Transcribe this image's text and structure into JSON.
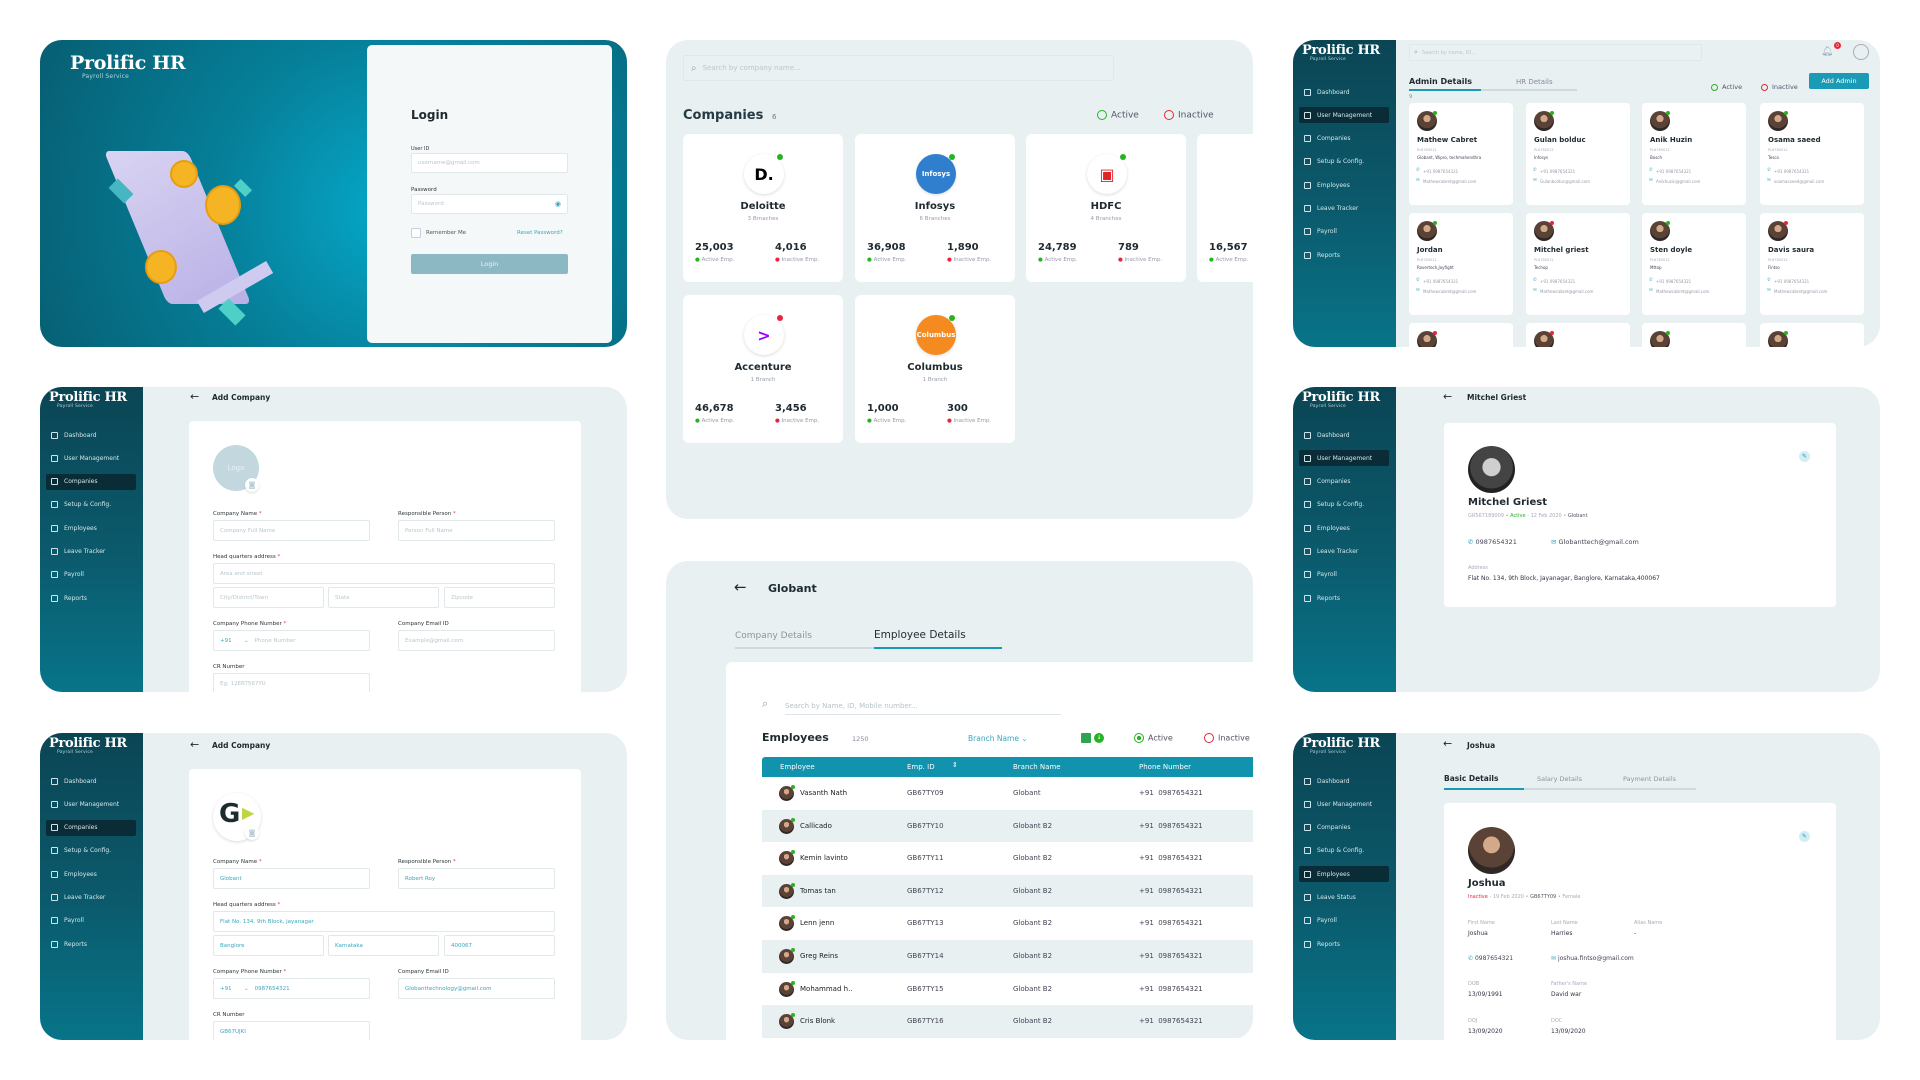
{
  "brand": {
    "name": "Prolific HR",
    "tagline": "Payroll Service"
  },
  "login": {
    "title": "Login",
    "user_id_label": "User ID",
    "user_id_placeholder": "username@gmail.com",
    "password_label": "Password",
    "password_placeholder": "Password",
    "remember_label": "Remember Me",
    "reset_link": "Reset Password?",
    "login_button": "Login"
  },
  "companies": {
    "search_placeholder": "Search by company name...",
    "title": "Companies",
    "count": "6",
    "legend": {
      "active": "Active",
      "inactive": "Inactive"
    },
    "active_label": "Active Emp.",
    "inactive_label": "Inactive Emp.",
    "cards": [
      {
        "name": "Deloitte",
        "branches": "3 Brnaches",
        "active": "25,003",
        "inactive": "4,016",
        "status": "active",
        "logo_text": "D.",
        "logo_bg": "#ffffff",
        "logo_fg": "#000000"
      },
      {
        "name": "Infosys",
        "branches": "6 Branches",
        "active": "36,908",
        "inactive": "1,890",
        "status": "active",
        "logo_text": "Infosys",
        "logo_bg": "#2f7fce",
        "logo_fg": "#ffffff"
      },
      {
        "name": "HDFC",
        "branches": "4 Branches",
        "active": "24,789",
        "inactive": "789",
        "status": "active",
        "logo_text": "▣",
        "logo_bg": "#ffffff",
        "logo_fg": "#e2232a"
      },
      {
        "name": "",
        "branches": "",
        "active": "16,567",
        "inactive": "",
        "status": "active",
        "logo_text": "",
        "logo_bg": "#ffffff",
        "logo_fg": "#000000"
      },
      {
        "name": "Accenture",
        "branches": "1 Branch",
        "active": "46,678",
        "inactive": "3,456",
        "status": "inactive",
        "logo_text": ">",
        "logo_bg": "#ffffff",
        "logo_fg": "#a100ff"
      },
      {
        "name": "Columbus",
        "branches": "1 Branch",
        "active": "1,000",
        "inactive": "300",
        "status": "active",
        "logo_text": "Columbus",
        "logo_bg": "#f58a20",
        "logo_fg": "#ffffff"
      }
    ]
  },
  "admin": {
    "sidebar": {
      "active": 1,
      "items": [
        "Dashboard",
        "User Management",
        "Companies",
        "Setup & Config.",
        "Employees",
        "Leave Tracker",
        "Payroll",
        "Reports"
      ]
    },
    "search_placeholder": "Search by name, ID...",
    "notification_count": "0",
    "tabs": [
      "Admin Details",
      "HR Details"
    ],
    "legend": {
      "active": "Active",
      "inactive": "Inactive"
    },
    "add_button": "Add Admin",
    "count": "9",
    "cards": [
      {
        "name": "Mathew Cabret",
        "id": "PL6780012",
        "company": "Globant, Wipro, techmahendhra",
        "phone": "+91 0987654321",
        "email": "Mathewcabret@gmail.com",
        "status": "active"
      },
      {
        "name": "Gulan bolduc",
        "id": "PL6780012",
        "company": "Infosys",
        "phone": "+91 0987654321",
        "email": "Gulanbolduc@gmail.com",
        "status": "active"
      },
      {
        "name": "Anik Huzin",
        "id": "PL6780012",
        "company": "Bosch",
        "phone": "+91 0987654321",
        "email": "Anikhuzin@gmail.com",
        "status": "active"
      },
      {
        "name": "Osama saeed",
        "id": "PL6780012",
        "company": "Tesco",
        "phone": "+91 0987654321",
        "email": "osamasaeed@gmail.com",
        "status": "active"
      },
      {
        "name": "Jordan",
        "id": "PL6780012",
        "company": "Rovertech,Joyfight",
        "phone": "+91 0987654321",
        "email": "Mathewcabret@gmail.com",
        "status": "active"
      },
      {
        "name": "Mitchel griest",
        "id": "PL6780012",
        "company": "Techop",
        "phone": "+91 0987654321",
        "email": "Mathewcabret@gmail.com",
        "status": "inactive"
      },
      {
        "name": "Sten doyle",
        "id": "PL6780012",
        "company": "Mttop",
        "phone": "+91 0987654321",
        "email": "Mathewcabret@gmail.com",
        "status": "active"
      },
      {
        "name": "Davis saura",
        "id": "PL6780012",
        "company": "Fintso",
        "phone": "+91 0987654321",
        "email": "Mathewcabret@gmail.com",
        "status": "inactive"
      }
    ],
    "partial_statuses": [
      "inactive",
      "inactive",
      "active",
      "active"
    ]
  },
  "add_company": {
    "sidebar": {
      "active": 2,
      "items": [
        "Dashboard",
        "User Management",
        "Companies",
        "Setup & Config.",
        "Employees",
        "Leave Tracker",
        "Payroll",
        "Reports"
      ]
    },
    "title": "Add Company",
    "logo_placeholder": "Logo",
    "labels": {
      "company_name": "Company Name",
      "responsible": "Responsible Person",
      "hq": "Head quarters address",
      "phone": "Company Phone Number",
      "email": "Company Email ID",
      "cr": "CR Number"
    },
    "placeholders": {
      "company_name": "Company Full Name",
      "responsible": "Person Full Name",
      "street": "Area and street",
      "city": "City/District/Town",
      "state": "State",
      "zip": "Zipcode",
      "country_code": "+91",
      "phone": "Phone Number",
      "email": "Example@gmail.com",
      "cr": "Eg: 12ERT567YU"
    }
  },
  "add_company_filled": {
    "sidebar": {
      "active": 2,
      "items": [
        "Dashboard",
        "User Management",
        "Companies",
        "Setup & Config.",
        "Employees",
        "Leave Tracker",
        "Payroll",
        "Reports"
      ]
    },
    "title": "Add Company",
    "logo_text": "G",
    "labels": {
      "company_name": "Company Name",
      "responsible": "Responsible Person",
      "hq": "Head quarters address",
      "phone": "Company Phone Number",
      "email": "Company Email ID",
      "cr": "CR Number"
    },
    "values": {
      "company_name": "Globant",
      "responsible": "Robert Roy",
      "street": "Flat No. 134, 9th Block, jayanagar",
      "city": "Banglore",
      "state": "Karnataka",
      "zip": "400067",
      "country_code": "+91",
      "phone": "0987654321",
      "email": "Globanttechnology@gmail.com",
      "cr": "GB67UJKI"
    }
  },
  "globant": {
    "title": "Globant",
    "tabs": [
      "Company Details",
      "Employee Details"
    ],
    "active_tab": 1,
    "search_placeholder": "Search by Name, ID, Mobile number...",
    "employees_title": "Employees",
    "employees_count": "1250",
    "branch_filter": "Branch Name",
    "legend": {
      "active": "Active",
      "inactive": "Inactive"
    },
    "columns": [
      "Employee",
      "Emp. ID",
      "Branch Name",
      "Phone Number"
    ],
    "rows": [
      {
        "name": "Vasanth Nath",
        "id": "GB67TY09",
        "branch": "Globant",
        "phone": "+91  0987654321"
      },
      {
        "name": "Callicado",
        "id": "GB67TY10",
        "branch": "Globant B2",
        "phone": "+91  0987654321"
      },
      {
        "name": "Kemin lavinto",
        "id": "GB67TY11",
        "branch": "Globant B2",
        "phone": "+91  0987654321"
      },
      {
        "name": "Tomas tan",
        "id": "GB67TY12",
        "branch": "Globant B2",
        "phone": "+91  0987654321"
      },
      {
        "name": "Lenn jenn",
        "id": "GB67TY13",
        "branch": "Globant B2",
        "phone": "+91  0987654321"
      },
      {
        "name": "Greg Reins",
        "id": "GB67TY14",
        "branch": "Globant B2",
        "phone": "+91  0987654321"
      },
      {
        "name": "Mohammad h..",
        "id": "GB67TY15",
        "branch": "Globant B2",
        "phone": "+91  0987654321"
      },
      {
        "name": "Cris Blonk",
        "id": "GB67TY16",
        "branch": "Globant B2",
        "phone": "+91  0987654321"
      }
    ]
  },
  "mitchel": {
    "sidebar": {
      "active": 1,
      "items": [
        "Dashboard",
        "User Management",
        "Companies",
        "Setup & Config.",
        "Employees",
        "Leave Tracker",
        "Payroll",
        "Reports"
      ]
    },
    "title": "Mitchel Griest",
    "name": "Mitchel Griest",
    "id": "GR567189009",
    "status": "Active",
    "date": "- 12 Feb 2020",
    "company": "Globant",
    "phone": "0987654321",
    "email": "Globanttech@gmail.com",
    "address_label": "Address",
    "address": "Flat No. 134, 9th Block, Jayanagar, Banglore, Karnataka,400067"
  },
  "joshua": {
    "sidebar": {
      "active": 4,
      "items": [
        "Dashboard",
        "User Management",
        "Companies",
        "Setup & Config.",
        "Employees",
        "Leave Status",
        "Payroll",
        "Reports"
      ]
    },
    "title": "Joshua",
    "tabs": [
      "Basic Details",
      "Salary Details",
      "Payment Details"
    ],
    "name": "Joshua",
    "status": "Inactive",
    "date": "- 19 Feb 2020",
    "id": "GB67TY09",
    "gender": "Female",
    "fields": [
      {
        "label": "First Name",
        "value": "Joshua"
      },
      {
        "label": "Last Name",
        "value": "Harries"
      },
      {
        "label": "Alias Name",
        "value": "-"
      }
    ],
    "phone": "0987654321",
    "email": "joshua.fintso@gmail.com",
    "fields2": [
      {
        "label": "DOB",
        "value": "13/09/1991"
      },
      {
        "label": "Father's Name",
        "value": "David war"
      }
    ],
    "fields3": [
      {
        "label": "DOJ",
        "value": "13/09/2020"
      },
      {
        "label": "DOC",
        "value": "13/09/2020"
      }
    ]
  },
  "colors": {
    "teal": "#1a9ab5",
    "table_header": "#1192ad",
    "active": "#27b320",
    "inactive": "#e8253a",
    "panel_bg": "#e8f0f2"
  }
}
